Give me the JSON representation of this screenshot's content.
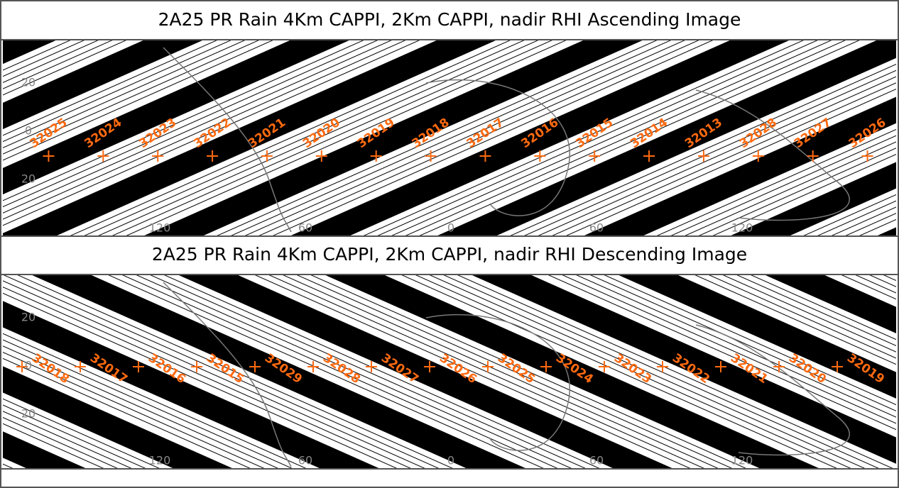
{
  "panels": [
    {
      "title": "2A25 PR Rain 4Km CAPPI, 2Km CAPPI, nadir RHI  Ascending Image",
      "orbits": [
        "32025",
        "32024",
        "32023",
        "32022",
        "32021",
        "32020",
        "32019",
        "32018",
        "32017",
        "32016",
        "32015",
        "32014",
        "32013",
        "32028",
        "32027",
        "32026"
      ],
      "lat_labels": [
        "20",
        "0",
        "20"
      ],
      "lon_labels": [
        "120",
        "60",
        "0",
        "60",
        "120"
      ]
    },
    {
      "title": "2A25 PR Rain 4Km CAPPI, 2Km CAPPI, nadir RHI  Descending Image",
      "orbits": [
        "32018",
        "32017",
        "32016",
        "32015",
        "32029",
        "32028",
        "32027",
        "32026",
        "32025",
        "32024",
        "32023",
        "32022",
        "32021",
        "32020",
        "32019"
      ],
      "lat_labels": [
        "20",
        "0",
        "20"
      ],
      "lon_labels": [
        "120",
        "60",
        "0",
        "60",
        "120"
      ]
    }
  ]
}
